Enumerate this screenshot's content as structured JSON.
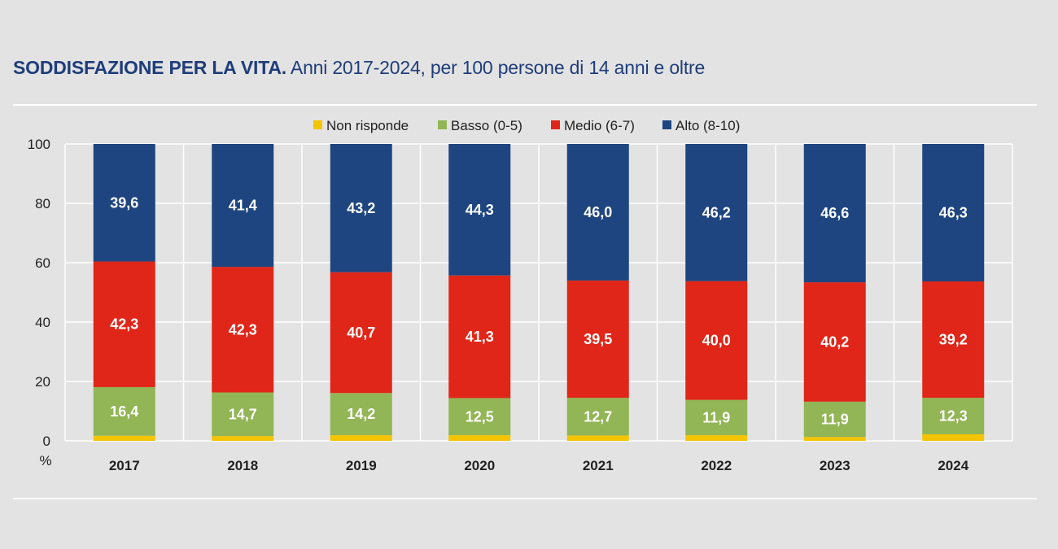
{
  "title": {
    "bold": "SODDISFAZIONE PER LA VITA.",
    "rest": "Anni 2017-2024, per 100 persone di 14 anni e oltre"
  },
  "chart_data": {
    "type": "bar",
    "stacked": true,
    "categories": [
      "2017",
      "2018",
      "2019",
      "2020",
      "2021",
      "2022",
      "2023",
      "2024"
    ],
    "ylabel": "%",
    "ylim": [
      0,
      100
    ],
    "yticks": [
      0,
      20,
      40,
      60,
      80,
      100
    ],
    "legend_position": "top-center",
    "series": [
      {
        "name": "Non risponde",
        "color": "#f5c400",
        "values": [
          1.7,
          1.6,
          1.9,
          1.9,
          1.8,
          1.9,
          1.3,
          2.2
        ],
        "labels": [
          "",
          "",
          "",
          "",
          "",
          "",
          "",
          ""
        ]
      },
      {
        "name": "Basso (0-5)",
        "color": "#92b555",
        "values": [
          16.4,
          14.7,
          14.2,
          12.5,
          12.7,
          11.9,
          11.9,
          12.3
        ],
        "labels": [
          "16,4",
          "14,7",
          "14,2",
          "12,5",
          "12,7",
          "11,9",
          "11,9",
          "12,3"
        ]
      },
      {
        "name": "Medio (6-7)",
        "color": "#e02618",
        "values": [
          42.3,
          42.3,
          40.7,
          41.3,
          39.5,
          40.0,
          40.2,
          39.2
        ],
        "labels": [
          "42,3",
          "42,3",
          "40,7",
          "41,3",
          "39,5",
          "40,0",
          "40,2",
          "39,2"
        ]
      },
      {
        "name": "Alto (8-10)",
        "color": "#1e4580",
        "values": [
          39.6,
          41.4,
          43.2,
          44.3,
          46.0,
          46.2,
          46.6,
          46.3
        ],
        "labels": [
          "39,6",
          "41,4",
          "43,2",
          "44,3",
          "46,0",
          "46,2",
          "46,6",
          "46,3"
        ]
      }
    ]
  }
}
